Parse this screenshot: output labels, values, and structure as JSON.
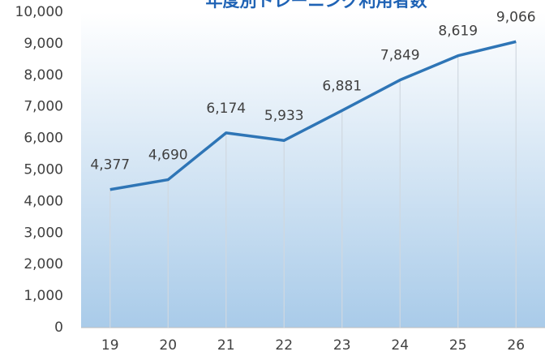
{
  "chart_data": {
    "type": "line",
    "title": "年度別トレーニング利用者数",
    "categories": [
      "19",
      "20",
      "21",
      "22",
      "23",
      "24",
      "25",
      "26"
    ],
    "values": [
      4377,
      4690,
      6174,
      5933,
      6881,
      7849,
      8619,
      9066
    ],
    "value_labels": [
      "4,377",
      "4,690",
      "6,174",
      "5,933",
      "6,881",
      "7,849",
      "8,619",
      "9,066"
    ],
    "color": "#2e75b6",
    "ylim": [
      0,
      10000
    ],
    "yticks": [
      0,
      {
        "value": 1000,
        "label": "1,000"
      },
      {
        "value": 2000,
        "label": "2,000"
      },
      {
        "value": 3000,
        "label": "3,000"
      },
      {
        "value": 4000,
        "label": "4,000"
      },
      {
        "value": 5000,
        "label": "5,000"
      },
      {
        "value": 6000,
        "label": "6,000"
      },
      {
        "value": 7000,
        "label": "7,000"
      },
      {
        "value": 8000,
        "label": "8,000"
      },
      {
        "value": 9000,
        "label": "9,000"
      },
      {
        "value": 10000,
        "label": "10,000"
      }
    ]
  }
}
